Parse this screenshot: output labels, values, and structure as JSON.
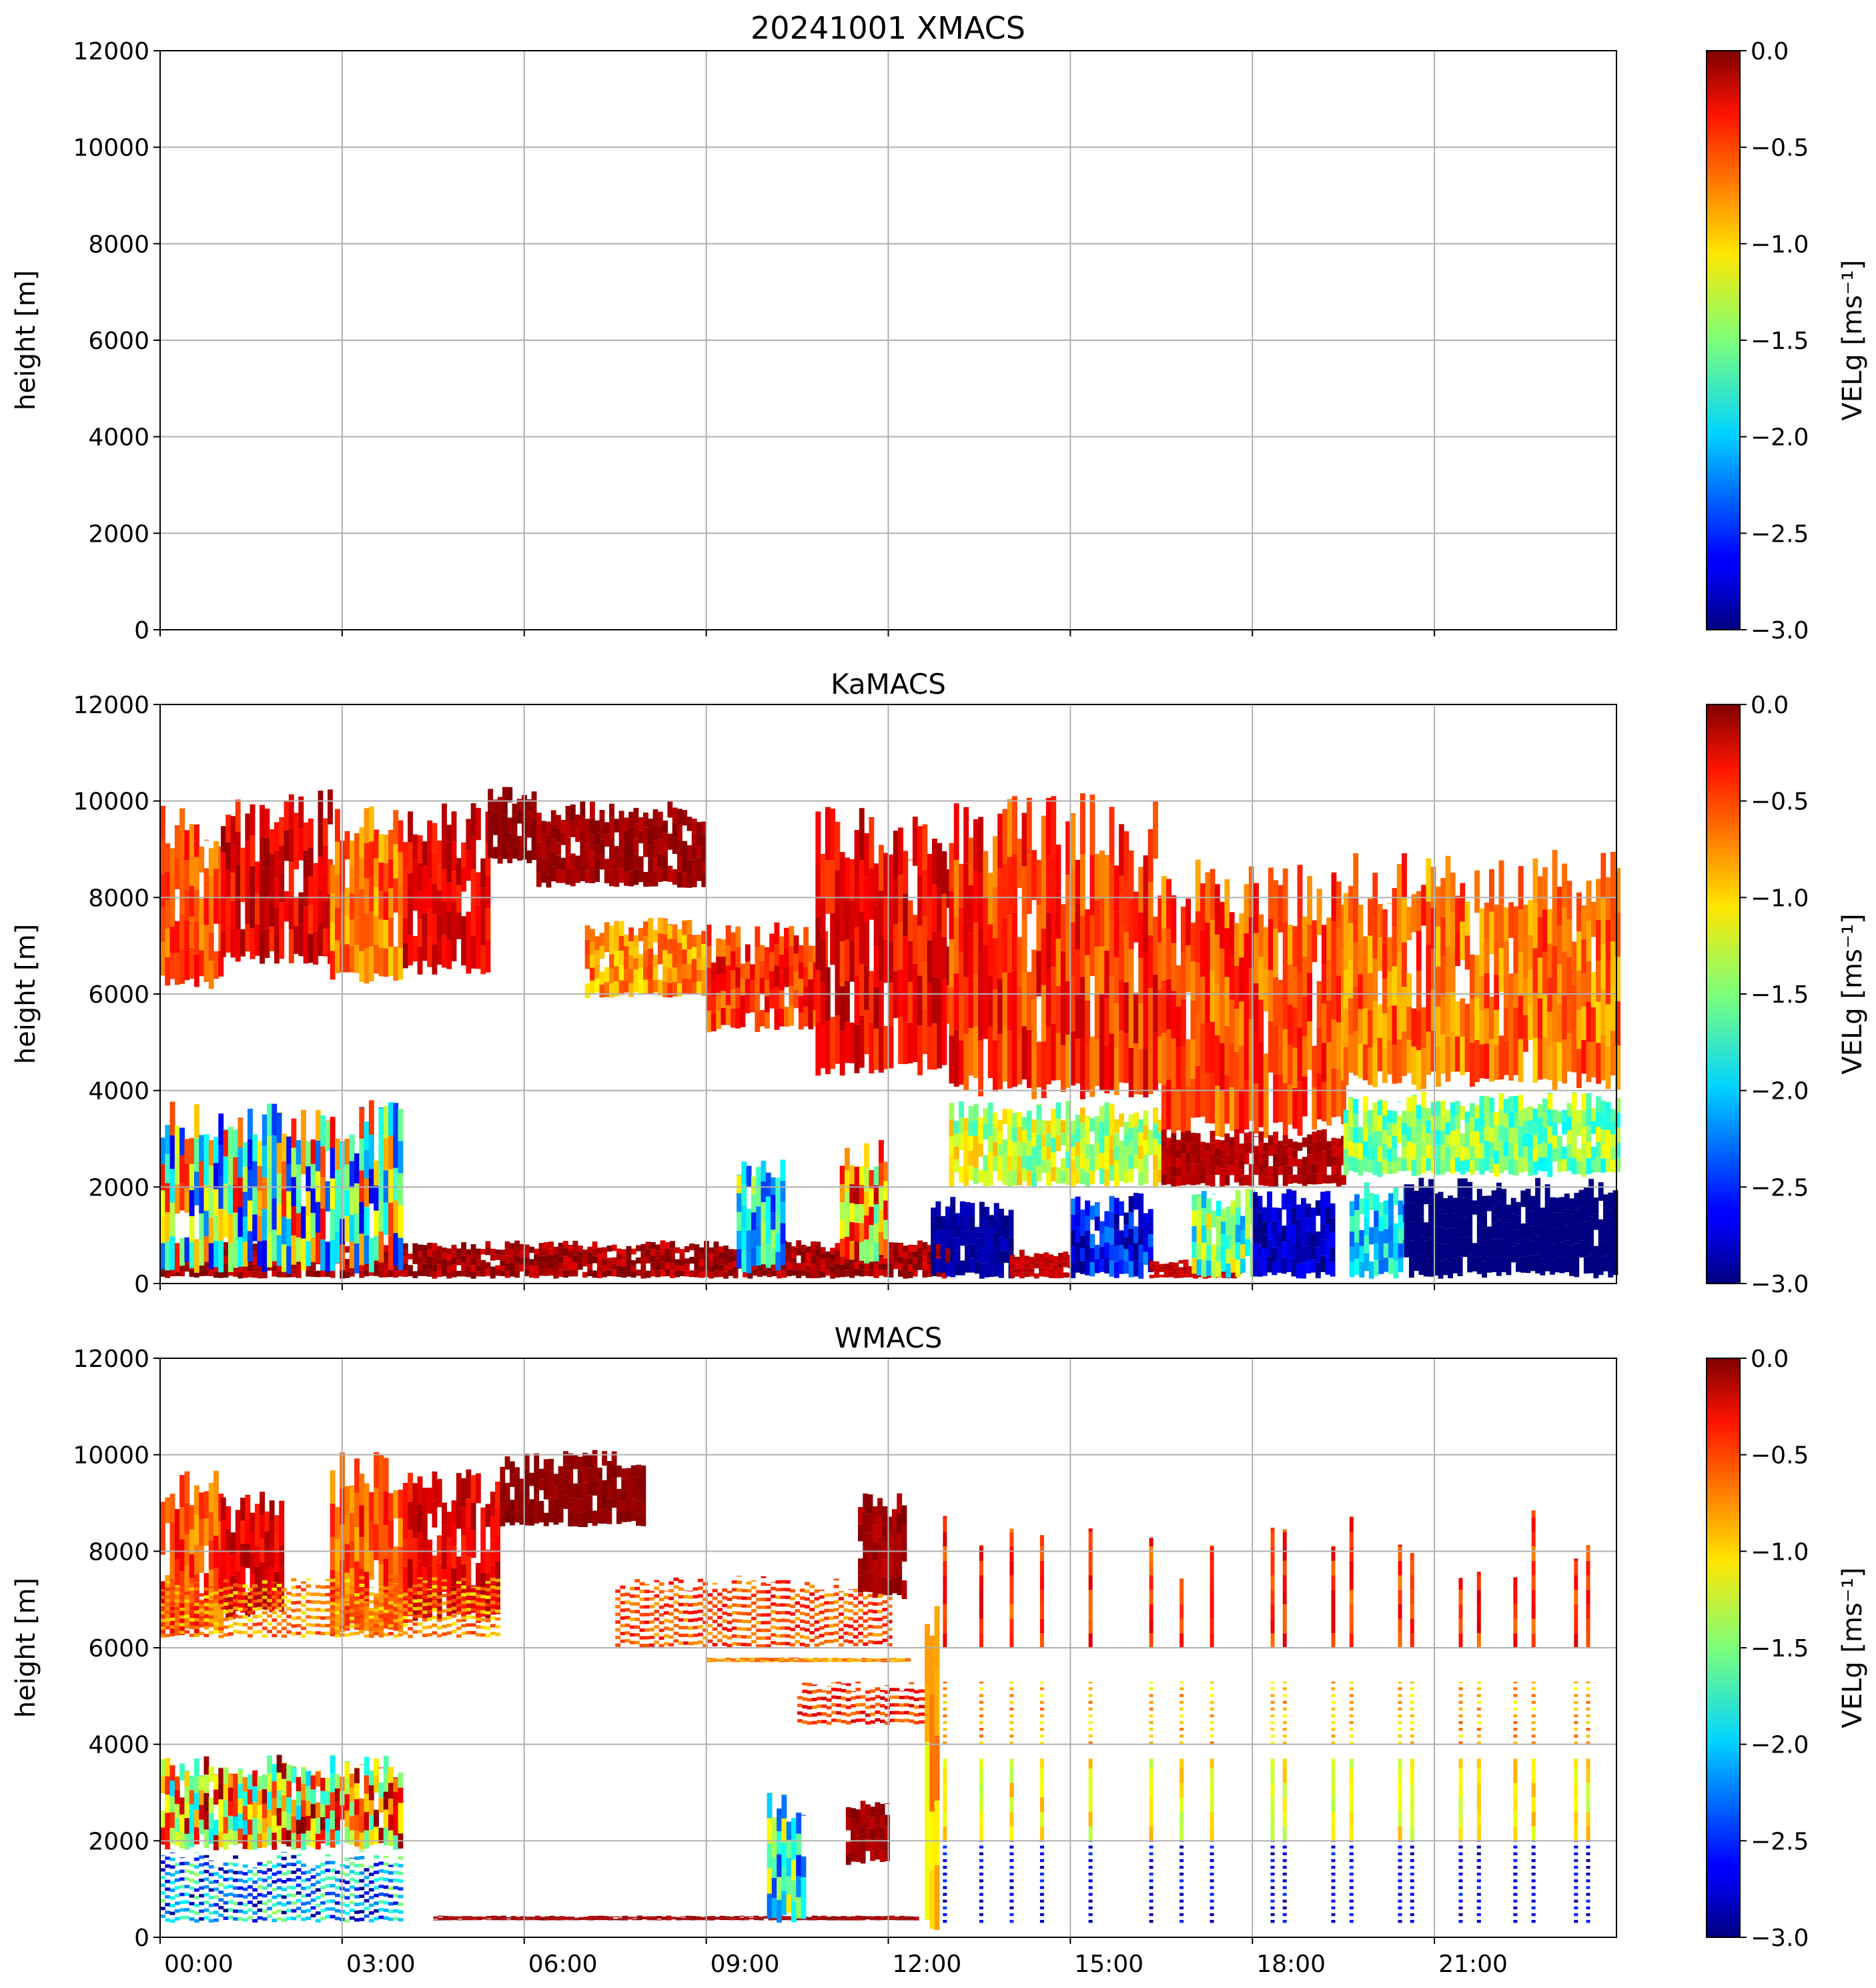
{
  "chart_data": {
    "type": "heatmap",
    "title": "20241001 XMACS",
    "colormap": "jet",
    "x_ticks": [
      "00:00",
      "03:00",
      "06:00",
      "09:00",
      "12:00",
      "15:00",
      "18:00",
      "21:00"
    ],
    "xlim_hours": [
      0,
      24
    ],
    "y_ticks": [
      "0",
      "2000",
      "4000",
      "6000",
      "8000",
      "10000",
      "12000"
    ],
    "ylim": [
      0,
      12000
    ],
    "ylabel": "height [m]",
    "colorbar": {
      "label": "VELg [ms⁻¹]",
      "ticks": [
        "0.0",
        "−0.5",
        "−1.0",
        "−1.5",
        "−2.0",
        "−2.5",
        "−3.0"
      ],
      "range": [
        -3.0,
        0.0
      ]
    },
    "panels": [
      {
        "title": "20241001 XMACS",
        "segments": [],
        "spikes": []
      },
      {
        "title": "KaMACS",
        "segments": [
          [
            0,
            1.0,
            6100,
            9900,
            -0.6,
            0.25,
            0
          ],
          [
            1.0,
            2.8,
            6600,
            10300,
            -0.3,
            0.25,
            0
          ],
          [
            2.8,
            4.0,
            6200,
            10000,
            -0.7,
            0.3,
            0
          ],
          [
            4.0,
            5.4,
            6400,
            10000,
            -0.3,
            0.2,
            0
          ],
          [
            5.4,
            6.2,
            8700,
            10300,
            -0.05,
            0.05,
            0
          ],
          [
            6.2,
            9.0,
            8200,
            10000,
            -0.1,
            0.1,
            0
          ],
          [
            7.0,
            9.0,
            5900,
            7600,
            -0.8,
            0.3,
            0
          ],
          [
            9.0,
            11.0,
            5200,
            7500,
            -0.5,
            0.3,
            0
          ],
          [
            10.8,
            13.0,
            4300,
            10000,
            -0.35,
            0.25,
            0
          ],
          [
            13.0,
            16.5,
            3800,
            10200,
            -0.5,
            0.3,
            0
          ],
          [
            13.0,
            16.5,
            2000,
            3800,
            -1.3,
            0.4,
            0
          ],
          [
            16.5,
            19.5,
            3000,
            8800,
            -0.6,
            0.3,
            0
          ],
          [
            16.5,
            19.5,
            2000,
            3200,
            -0.15,
            0.1,
            0
          ],
          [
            19.5,
            24,
            4000,
            9000,
            -0.7,
            0.3,
            0
          ],
          [
            19.5,
            24,
            2200,
            4000,
            -1.5,
            0.4,
            0
          ],
          [
            0,
            13,
            100,
            900,
            -0.1,
            0.2,
            0
          ],
          [
            0,
            4.0,
            200,
            3800,
            -1.5,
            1.2,
            0
          ],
          [
            9.5,
            10.3,
            200,
            2800,
            -1.8,
            0.8,
            0
          ],
          [
            11.2,
            12,
            400,
            3000,
            -0.9,
            0.8,
            0
          ],
          [
            12.7,
            14.0,
            100,
            1800,
            -2.9,
            0.1,
            0
          ],
          [
            14.0,
            15.0,
            100,
            700,
            -0.2,
            0.1,
            0
          ],
          [
            15.0,
            16.3,
            100,
            1900,
            -2.6,
            0.4,
            0
          ],
          [
            16.3,
            17.8,
            100,
            500,
            -0.2,
            0.1,
            0
          ],
          [
            17.0,
            18.0,
            100,
            2000,
            -1.6,
            0.6,
            0
          ],
          [
            18.0,
            19.3,
            100,
            2000,
            -2.8,
            0.2,
            0
          ],
          [
            19.6,
            20.5,
            100,
            2200,
            -2.0,
            0.4,
            0
          ],
          [
            20.5,
            24,
            100,
            2200,
            -3.0,
            0.02,
            0
          ]
        ],
        "spikes": []
      },
      {
        "title": "WMACS",
        "segments": [
          [
            0,
            1.0,
            6200,
            9700,
            -0.6,
            0.3,
            0
          ],
          [
            1.0,
            2.0,
            6600,
            9300,
            -0.3,
            0.2,
            0
          ],
          [
            2.8,
            4.0,
            6200,
            10100,
            -0.6,
            0.3,
            0
          ],
          [
            4.0,
            5.6,
            6500,
            9700,
            -0.3,
            0.2,
            0
          ],
          [
            5.6,
            8.0,
            8500,
            10100,
            -0.05,
            0.05,
            0
          ],
          [
            0,
            5.6,
            6200,
            7500,
            -0.8,
            0.3,
            1
          ],
          [
            7.5,
            12.0,
            6000,
            7500,
            -0.6,
            0.3,
            1
          ],
          [
            9.0,
            12.3,
            5700,
            5800,
            -0.8,
            0.3,
            0
          ],
          [
            10.5,
            12.8,
            4400,
            5300,
            -0.5,
            0.3,
            1
          ],
          [
            11.5,
            12.3,
            7000,
            9200,
            -0.1,
            0.1,
            0
          ],
          [
            0,
            4.0,
            1800,
            3800,
            -1.0,
            1.0,
            0
          ],
          [
            0,
            4.0,
            300,
            1800,
            -2.2,
            0.8,
            1
          ],
          [
            4.5,
            12.5,
            350,
            450,
            -0.1,
            0.1,
            0
          ],
          [
            10.0,
            10.6,
            300,
            3000,
            -1.8,
            0.8,
            0
          ],
          [
            11.3,
            12.0,
            1500,
            3000,
            -0.1,
            0.1,
            0
          ],
          [
            12.6,
            12.8,
            0,
            7400,
            -0.9,
            0.3,
            0
          ]
        ],
        "spikes": [
          12.9,
          13.5,
          14.0,
          14.5,
          15.3,
          16.3,
          16.8,
          17.3,
          18.3,
          18.5,
          19.3,
          19.6,
          20.4,
          20.6,
          21.4,
          21.7,
          22.3,
          22.6,
          23.3,
          23.5
        ]
      }
    ]
  }
}
